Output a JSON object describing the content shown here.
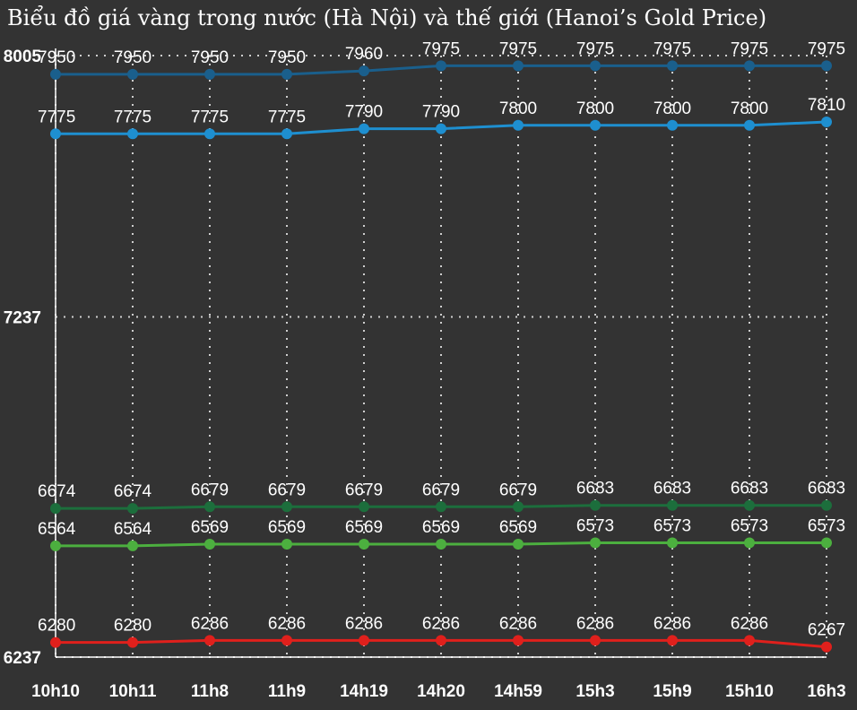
{
  "chart_data": {
    "type": "line",
    "title": "Biểu đồ giá vàng trong nước (Hà Nội) và thế giới (Hanoi’s Gold Price)",
    "xlabel": "",
    "ylabel": "",
    "categories": [
      "10h10",
      "10h11",
      "11h8",
      "11h9",
      "14h19",
      "14h20",
      "14h59",
      "15h3",
      "15h9",
      "15h10",
      "16h3"
    ],
    "y_ticks": [
      6237,
      7237,
      8005
    ],
    "ylim": [
      6237,
      8005
    ],
    "grid": true,
    "legend": "none",
    "series": [
      {
        "color": "#1a5f8c",
        "values": [
          7950,
          7950,
          7950,
          7950,
          7960,
          7975,
          7975,
          7975,
          7975,
          7975,
          7975
        ]
      },
      {
        "color": "#1e8fd0",
        "values": [
          7775,
          7775,
          7775,
          7775,
          7790,
          7790,
          7800,
          7800,
          7800,
          7800,
          7810
        ]
      },
      {
        "color": "#1c6e3c",
        "values": [
          6674,
          6674,
          6679,
          6679,
          6679,
          6679,
          6679,
          6683,
          6683,
          6683,
          6683
        ]
      },
      {
        "color": "#4caf3f",
        "values": [
          6564,
          6564,
          6569,
          6569,
          6569,
          6569,
          6569,
          6573,
          6573,
          6573,
          6573
        ]
      },
      {
        "color": "#e0201c",
        "values": [
          6280,
          6280,
          6286,
          6286,
          6286,
          6286,
          6286,
          6286,
          6286,
          6286,
          6267
        ]
      }
    ]
  }
}
